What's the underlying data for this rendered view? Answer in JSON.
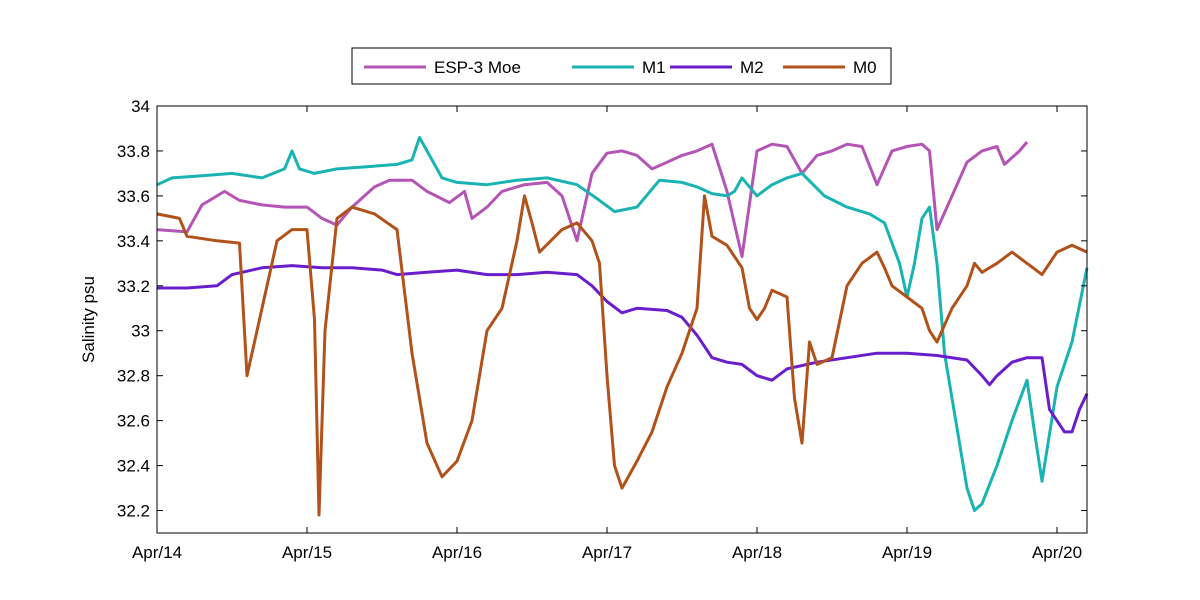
{
  "chart_data": {
    "type": "line",
    "title": "",
    "xlabel": "",
    "ylabel": "Salinity psu",
    "xlim": [
      0,
      6.2
    ],
    "ylim": [
      32.1,
      34
    ],
    "xticks": [
      {
        "value": 0,
        "label": "Apr/14"
      },
      {
        "value": 1,
        "label": "Apr/15"
      },
      {
        "value": 2,
        "label": "Apr/16"
      },
      {
        "value": 3,
        "label": "Apr/17"
      },
      {
        "value": 4,
        "label": "Apr/18"
      },
      {
        "value": 5,
        "label": "Apr/19"
      },
      {
        "value": 6,
        "label": "Apr/20"
      }
    ],
    "yticks": [
      {
        "value": 32.2,
        "label": "32.2"
      },
      {
        "value": 32.4,
        "label": "32.4"
      },
      {
        "value": 32.6,
        "label": "32.6"
      },
      {
        "value": 32.8,
        "label": "32.8"
      },
      {
        "value": 33,
        "label": "33"
      },
      {
        "value": 33.2,
        "label": "33.2"
      },
      {
        "value": 33.4,
        "label": "33.4"
      },
      {
        "value": 33.6,
        "label": "33.6"
      },
      {
        "value": 33.8,
        "label": "33.8"
      },
      {
        "value": 34,
        "label": "34"
      }
    ],
    "grid": false,
    "legend_position": "top-center",
    "series": [
      {
        "name": "ESP-3 Moe",
        "color": "#b455b6",
        "points": [
          [
            0,
            33.45
          ],
          [
            0.2,
            33.44
          ],
          [
            0.3,
            33.56
          ],
          [
            0.45,
            33.62
          ],
          [
            0.55,
            33.58
          ],
          [
            0.7,
            33.56
          ],
          [
            0.85,
            33.55
          ],
          [
            1.0,
            33.55
          ],
          [
            1.1,
            33.5
          ],
          [
            1.2,
            33.47
          ],
          [
            1.3,
            33.55
          ],
          [
            1.45,
            33.64
          ],
          [
            1.55,
            33.67
          ],
          [
            1.7,
            33.67
          ],
          [
            1.8,
            33.62
          ],
          [
            1.95,
            33.57
          ],
          [
            2.05,
            33.62
          ],
          [
            2.1,
            33.5
          ],
          [
            2.2,
            33.55
          ],
          [
            2.3,
            33.62
          ],
          [
            2.45,
            33.65
          ],
          [
            2.6,
            33.66
          ],
          [
            2.7,
            33.6
          ],
          [
            2.8,
            33.4
          ],
          [
            2.9,
            33.7
          ],
          [
            3.0,
            33.79
          ],
          [
            3.1,
            33.8
          ],
          [
            3.2,
            33.78
          ],
          [
            3.3,
            33.72
          ],
          [
            3.4,
            33.75
          ],
          [
            3.5,
            33.78
          ],
          [
            3.6,
            33.8
          ],
          [
            3.7,
            33.83
          ],
          [
            3.8,
            33.62
          ],
          [
            3.9,
            33.33
          ],
          [
            4.0,
            33.8
          ],
          [
            4.1,
            33.83
          ],
          [
            4.2,
            33.82
          ],
          [
            4.3,
            33.7
          ],
          [
            4.4,
            33.78
          ],
          [
            4.5,
            33.8
          ],
          [
            4.6,
            33.83
          ],
          [
            4.7,
            33.82
          ],
          [
            4.8,
            33.65
          ],
          [
            4.9,
            33.8
          ],
          [
            5.0,
            33.82
          ],
          [
            5.1,
            33.83
          ],
          [
            5.15,
            33.8
          ],
          [
            5.2,
            33.45
          ],
          [
            5.3,
            33.6
          ],
          [
            5.4,
            33.75
          ],
          [
            5.5,
            33.8
          ],
          [
            5.6,
            33.82
          ],
          [
            5.65,
            33.74
          ],
          [
            5.75,
            33.8
          ],
          [
            5.8,
            33.84
          ]
        ]
      },
      {
        "name": "M1",
        "color": "#1ab3b3",
        "points": [
          [
            0,
            33.65
          ],
          [
            0.1,
            33.68
          ],
          [
            0.3,
            33.69
          ],
          [
            0.5,
            33.7
          ],
          [
            0.7,
            33.68
          ],
          [
            0.85,
            33.72
          ],
          [
            0.9,
            33.8
          ],
          [
            0.95,
            33.72
          ],
          [
            1.05,
            33.7
          ],
          [
            1.2,
            33.72
          ],
          [
            1.4,
            33.73
          ],
          [
            1.6,
            33.74
          ],
          [
            1.7,
            33.76
          ],
          [
            1.75,
            33.86
          ],
          [
            1.8,
            33.8
          ],
          [
            1.9,
            33.68
          ],
          [
            2.0,
            33.66
          ],
          [
            2.2,
            33.65
          ],
          [
            2.4,
            33.67
          ],
          [
            2.6,
            33.68
          ],
          [
            2.8,
            33.65
          ],
          [
            2.95,
            33.58
          ],
          [
            3.05,
            33.53
          ],
          [
            3.2,
            33.55
          ],
          [
            3.35,
            33.67
          ],
          [
            3.5,
            33.66
          ],
          [
            3.6,
            33.64
          ],
          [
            3.7,
            33.61
          ],
          [
            3.8,
            33.6
          ],
          [
            3.85,
            33.62
          ],
          [
            3.9,
            33.68
          ],
          [
            4.0,
            33.6
          ],
          [
            4.1,
            33.65
          ],
          [
            4.2,
            33.68
          ],
          [
            4.3,
            33.7
          ],
          [
            4.45,
            33.6
          ],
          [
            4.6,
            33.55
          ],
          [
            4.75,
            33.52
          ],
          [
            4.85,
            33.48
          ],
          [
            4.95,
            33.3
          ],
          [
            5.0,
            33.15
          ],
          [
            5.05,
            33.3
          ],
          [
            5.1,
            33.5
          ],
          [
            5.15,
            33.55
          ],
          [
            5.2,
            33.3
          ],
          [
            5.25,
            32.9
          ],
          [
            5.3,
            32.7
          ],
          [
            5.35,
            32.5
          ],
          [
            5.4,
            32.3
          ],
          [
            5.45,
            32.2
          ],
          [
            5.5,
            32.23
          ],
          [
            5.6,
            32.4
          ],
          [
            5.7,
            32.6
          ],
          [
            5.8,
            32.78
          ],
          [
            5.85,
            32.55
          ],
          [
            5.9,
            32.33
          ],
          [
            6.0,
            32.75
          ],
          [
            6.1,
            32.95
          ],
          [
            6.2,
            33.28
          ]
        ]
      },
      {
        "name": "M2",
        "color": "#6a1ecb",
        "points": [
          [
            0,
            33.19
          ],
          [
            0.2,
            33.19
          ],
          [
            0.4,
            33.2
          ],
          [
            0.5,
            33.25
          ],
          [
            0.7,
            33.28
          ],
          [
            0.9,
            33.29
          ],
          [
            1.1,
            33.28
          ],
          [
            1.3,
            33.28
          ],
          [
            1.5,
            33.27
          ],
          [
            1.6,
            33.25
          ],
          [
            1.8,
            33.26
          ],
          [
            2.0,
            33.27
          ],
          [
            2.2,
            33.25
          ],
          [
            2.4,
            33.25
          ],
          [
            2.6,
            33.26
          ],
          [
            2.8,
            33.25
          ],
          [
            2.9,
            33.2
          ],
          [
            3.0,
            33.13
          ],
          [
            3.1,
            33.08
          ],
          [
            3.2,
            33.1
          ],
          [
            3.4,
            33.09
          ],
          [
            3.5,
            33.06
          ],
          [
            3.6,
            32.98
          ],
          [
            3.7,
            32.88
          ],
          [
            3.8,
            32.86
          ],
          [
            3.9,
            32.85
          ],
          [
            4.0,
            32.8
          ],
          [
            4.1,
            32.78
          ],
          [
            4.2,
            32.83
          ],
          [
            4.4,
            32.86
          ],
          [
            4.6,
            32.88
          ],
          [
            4.8,
            32.9
          ],
          [
            5.0,
            32.9
          ],
          [
            5.2,
            32.89
          ],
          [
            5.4,
            32.87
          ],
          [
            5.5,
            32.8
          ],
          [
            5.55,
            32.76
          ],
          [
            5.6,
            32.8
          ],
          [
            5.7,
            32.86
          ],
          [
            5.8,
            32.88
          ],
          [
            5.9,
            32.88
          ],
          [
            5.95,
            32.65
          ],
          [
            6.05,
            32.55
          ],
          [
            6.1,
            32.55
          ],
          [
            6.15,
            32.65
          ],
          [
            6.2,
            32.72
          ]
        ]
      },
      {
        "name": "M0",
        "color": "#b0521a",
        "points": [
          [
            0,
            33.52
          ],
          [
            0.15,
            33.5
          ],
          [
            0.2,
            33.42
          ],
          [
            0.4,
            33.4
          ],
          [
            0.55,
            33.39
          ],
          [
            0.6,
            32.8
          ],
          [
            0.7,
            33.1
          ],
          [
            0.8,
            33.4
          ],
          [
            0.9,
            33.45
          ],
          [
            1.0,
            33.45
          ],
          [
            1.05,
            33.05
          ],
          [
            1.08,
            32.18
          ],
          [
            1.12,
            33.0
          ],
          [
            1.2,
            33.5
          ],
          [
            1.3,
            33.55
          ],
          [
            1.45,
            33.52
          ],
          [
            1.6,
            33.45
          ],
          [
            1.7,
            32.9
          ],
          [
            1.8,
            32.5
          ],
          [
            1.9,
            32.35
          ],
          [
            2.0,
            32.42
          ],
          [
            2.1,
            32.6
          ],
          [
            2.2,
            33.0
          ],
          [
            2.3,
            33.1
          ],
          [
            2.4,
            33.4
          ],
          [
            2.45,
            33.6
          ],
          [
            2.5,
            33.48
          ],
          [
            2.55,
            33.35
          ],
          [
            2.7,
            33.45
          ],
          [
            2.8,
            33.48
          ],
          [
            2.9,
            33.4
          ],
          [
            2.95,
            33.3
          ],
          [
            3.0,
            32.8
          ],
          [
            3.05,
            32.4
          ],
          [
            3.1,
            32.3
          ],
          [
            3.2,
            32.42
          ],
          [
            3.3,
            32.55
          ],
          [
            3.4,
            32.75
          ],
          [
            3.5,
            32.9
          ],
          [
            3.6,
            33.1
          ],
          [
            3.65,
            33.6
          ],
          [
            3.7,
            33.42
          ],
          [
            3.8,
            33.38
          ],
          [
            3.9,
            33.28
          ],
          [
            3.95,
            33.1
          ],
          [
            4.0,
            33.05
          ],
          [
            4.05,
            33.1
          ],
          [
            4.1,
            33.18
          ],
          [
            4.2,
            33.15
          ],
          [
            4.25,
            32.7
          ],
          [
            4.3,
            32.5
          ],
          [
            4.35,
            32.95
          ],
          [
            4.4,
            32.85
          ],
          [
            4.5,
            32.88
          ],
          [
            4.6,
            33.2
          ],
          [
            4.7,
            33.3
          ],
          [
            4.8,
            33.35
          ],
          [
            4.85,
            33.28
          ],
          [
            4.9,
            33.2
          ],
          [
            5.0,
            33.15
          ],
          [
            5.1,
            33.1
          ],
          [
            5.15,
            33.0
          ],
          [
            5.2,
            32.95
          ],
          [
            5.3,
            33.1
          ],
          [
            5.4,
            33.2
          ],
          [
            5.45,
            33.3
          ],
          [
            5.5,
            33.26
          ],
          [
            5.6,
            33.3
          ],
          [
            5.7,
            33.35
          ],
          [
            5.8,
            33.3
          ],
          [
            5.9,
            33.25
          ],
          [
            6.0,
            33.35
          ],
          [
            6.1,
            33.38
          ],
          [
            6.2,
            33.35
          ]
        ]
      }
    ]
  }
}
